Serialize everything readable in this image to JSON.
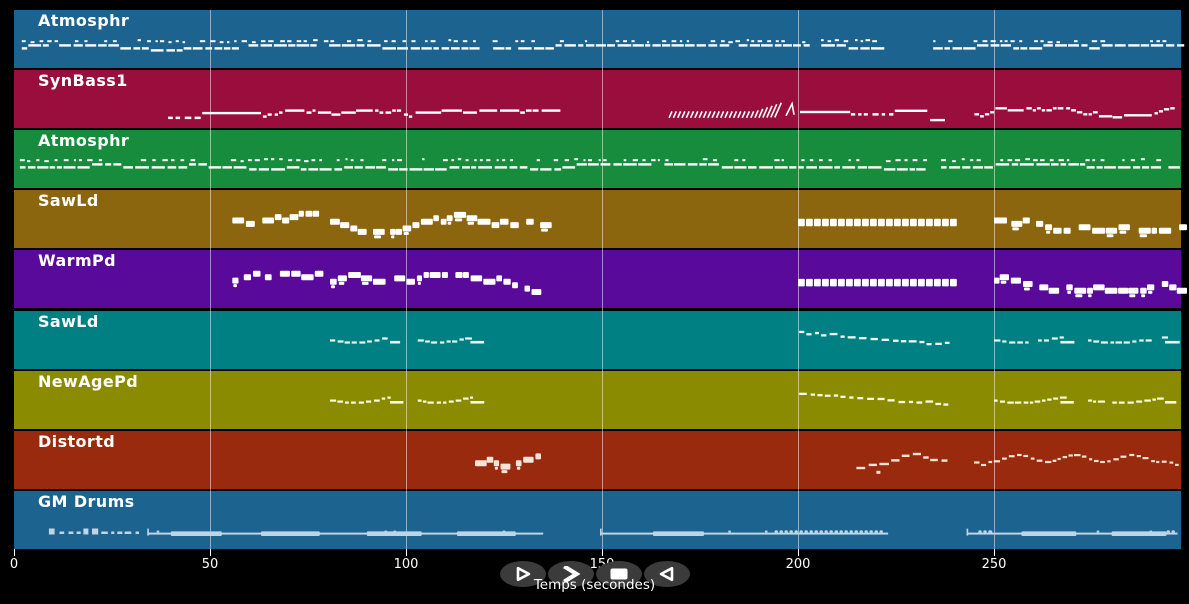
{
  "app": {
    "background": "#000000"
  },
  "axis": {
    "label": "Temps (secondes)",
    "ticks": [
      0,
      50,
      100,
      150,
      200,
      250
    ],
    "t_max": 297.7,
    "tick_color": "#ffffff",
    "gridline_color": "rgba(255,255,255,0.5)"
  },
  "transport": {
    "button_color": "#3b3b3b",
    "glyph_color": "#ffffff",
    "buttons": [
      {
        "name": "play",
        "icon": "play-icon"
      },
      {
        "name": "fast-forward",
        "icon": "fast-forward-icon"
      },
      {
        "name": "stop",
        "icon": "stop-icon"
      },
      {
        "name": "rewind",
        "icon": "rewind-icon"
      }
    ]
  },
  "tracks": [
    {
      "label": "Atmosphr",
      "color": "#1d6390",
      "note_color": "#ffffff",
      "segments": [
        {
          "type": "atmo",
          "t0": 2,
          "t1": 220.5,
          "y": 0.64,
          "seed": 11
        },
        {
          "type": "atmo",
          "t0": 234.5,
          "t1": 297.4,
          "y": 0.64,
          "seed": 12
        }
      ]
    },
    {
      "label": "SynBass1",
      "color": "#990e3c",
      "note_color": "#ffffff",
      "segments": [
        {
          "type": "dashes",
          "t0": 39.3,
          "t1": 47.5,
          "y": 0.8,
          "seed": 21
        },
        {
          "type": "line",
          "t0": 48,
          "t1": 63,
          "y": 0.72
        },
        {
          "type": "bassline",
          "t0": 63.5,
          "t1": 135.5,
          "y": 0.78,
          "seed": 22
        },
        {
          "type": "hatch",
          "t0": 167.3,
          "t1": 199.5,
          "y": 0.82,
          "seed": 23
        },
        {
          "type": "line",
          "t0": 200.5,
          "t1": 213.3,
          "y": 0.7
        },
        {
          "type": "dashes",
          "t0": 213.5,
          "t1": 223.5,
          "y": 0.74,
          "seed": 24
        },
        {
          "type": "line",
          "t0": 224.7,
          "t1": 233,
          "y": 0.68
        },
        {
          "type": "line",
          "t0": 233.7,
          "t1": 237.5,
          "y": 0.84
        },
        {
          "type": "bassline",
          "t0": 245,
          "t1": 293,
          "y": 0.74,
          "seed": 25
        }
      ]
    },
    {
      "label": "Atmosphr",
      "color": "#168c3c",
      "note_color": "#ffffff",
      "segments": [
        {
          "type": "atmo",
          "t0": 1.5,
          "t1": 233,
          "y": 0.62,
          "seed": 31
        },
        {
          "type": "atmo",
          "t0": 236.5,
          "t1": 296.5,
          "y": 0.62,
          "seed": 32
        }
      ]
    },
    {
      "label": "SawLd",
      "color": "#8c650f",
      "note_color": "#ffffff",
      "segments": [
        {
          "type": "blocks",
          "t0": 55.7,
          "t1": 77,
          "y": 0.52,
          "seed": 41
        },
        {
          "type": "blocks",
          "t0": 80.6,
          "t1": 134.5,
          "y": 0.54,
          "seed": 42
        },
        {
          "type": "blockbar",
          "t0": 200,
          "t1": 239.9,
          "y": 0.56
        },
        {
          "type": "blocks",
          "t0": 250,
          "t1": 297.6,
          "y": 0.52,
          "seed": 43
        }
      ]
    },
    {
      "label": "WarmPd",
      "color": "#5a0a9b",
      "note_color": "#ffffff",
      "segments": [
        {
          "type": "blocks",
          "t0": 55.7,
          "t1": 77,
          "y": 0.52,
          "seed": 51
        },
        {
          "type": "blocks",
          "t0": 80.6,
          "t1": 134.5,
          "y": 0.54,
          "seed": 52
        },
        {
          "type": "blockbar",
          "t0": 200,
          "t1": 239.9,
          "y": 0.56
        },
        {
          "type": "blocks",
          "t0": 250,
          "t1": 297.6,
          "y": 0.52,
          "seed": 53
        }
      ]
    },
    {
      "label": "SawLd",
      "color": "#008083",
      "note_color": "#eefcf6",
      "segments": [
        {
          "type": "waverun",
          "t0": 80.6,
          "t1": 99.5,
          "y": 0.48,
          "seed": 61
        },
        {
          "type": "waverun",
          "t0": 103,
          "t1": 120,
          "y": 0.48,
          "seed": 62
        },
        {
          "type": "descdash",
          "t0": 200.3,
          "t1": 238,
          "y": 0.38,
          "seed": 63
        },
        {
          "type": "waverun",
          "t0": 250,
          "t1": 270.5,
          "y": 0.48,
          "seed": 64
        },
        {
          "type": "waverun",
          "t0": 274,
          "t1": 297.2,
          "y": 0.48,
          "seed": 65
        }
      ]
    },
    {
      "label": "NewAgePd",
      "color": "#8b8b00",
      "note_color": "#fbfbe4",
      "segments": [
        {
          "type": "waverun",
          "t0": 80.6,
          "t1": 99.5,
          "y": 0.48,
          "seed": 71
        },
        {
          "type": "waverun",
          "t0": 103,
          "t1": 120,
          "y": 0.48,
          "seed": 72
        },
        {
          "type": "descdash",
          "t0": 200.3,
          "t1": 238,
          "y": 0.38,
          "seed": 73
        },
        {
          "type": "waverun",
          "t0": 250,
          "t1": 270.5,
          "y": 0.48,
          "seed": 74
        },
        {
          "type": "waverun",
          "t0": 274,
          "t1": 297.2,
          "y": 0.48,
          "seed": 75
        }
      ]
    },
    {
      "label": "Distortd",
      "color": "#992a0d",
      "note_color": "#f8e3d8",
      "segments": [
        {
          "type": "blocks",
          "t0": 117.6,
          "t1": 134.5,
          "y": 0.56,
          "seed": 81
        },
        {
          "type": "arc",
          "t0": 214.9,
          "t1": 238,
          "y": 0.5,
          "seed": 82
        },
        {
          "type": "distwave",
          "t0": 244.9,
          "t1": 297.4,
          "y": 0.46,
          "seed": 83
        }
      ]
    },
    {
      "label": "GM Drums",
      "color": "#1d6390",
      "note_color": "#bdd5e6",
      "segments": [
        {
          "type": "dashes",
          "t0": 8.9,
          "t1": 31,
          "y": 0.7,
          "seed": 91
        },
        {
          "type": "drumline",
          "t0": 34,
          "t1": 135,
          "y": 0.72,
          "seed": 92,
          "thick": [
            [
              40,
              53
            ],
            [
              63,
              78
            ],
            [
              90,
              104
            ],
            [
              113,
              128
            ]
          ]
        },
        {
          "type": "drumline",
          "t0": 149.5,
          "t1": 223,
          "y": 0.72,
          "seed": 93,
          "thick": [
            [
              163,
              176
            ]
          ],
          "scallops": [
            [
              194,
              222
            ]
          ]
        },
        {
          "type": "drumline",
          "t0": 243,
          "t1": 296.8,
          "y": 0.72,
          "seed": 94,
          "thick": [
            [
              257,
              271
            ],
            [
              280,
              294
            ]
          ],
          "scallops": [
            [
              246,
              249
            ],
            [
              294,
              296.5
            ]
          ]
        }
      ]
    }
  ]
}
